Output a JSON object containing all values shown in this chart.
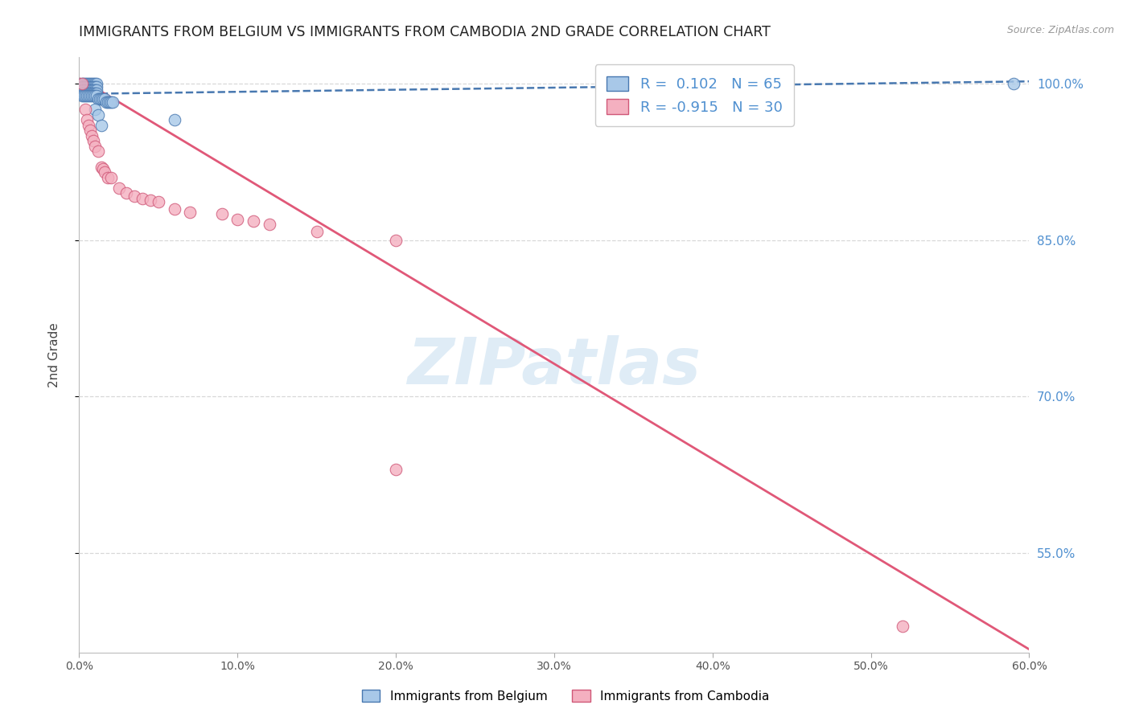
{
  "title": "IMMIGRANTS FROM BELGIUM VS IMMIGRANTS FROM CAMBODIA 2ND GRADE CORRELATION CHART",
  "source": "Source: ZipAtlas.com",
  "ylabel": "2nd Grade",
  "watermark": "ZIPatlas",
  "xlim": [
    0.0,
    0.6
  ],
  "ylim": [
    0.455,
    1.025
  ],
  "yticks": [
    0.55,
    0.7,
    0.85,
    1.0
  ],
  "ytick_labels": [
    "55.0%",
    "70.0%",
    "85.0%",
    "100.0%"
  ],
  "xticks": [
    0.0,
    0.1,
    0.2,
    0.3,
    0.4,
    0.5,
    0.6
  ],
  "xtick_labels": [
    "0.0%",
    "10.0%",
    "20.0%",
    "30.0%",
    "40.0%",
    "50.0%",
    "60.0%"
  ],
  "blue_label": "Immigrants from Belgium",
  "pink_label": "Immigrants from Cambodia",
  "blue_R": "0.102",
  "blue_N": "65",
  "pink_R": "-0.915",
  "pink_N": "30",
  "blue_color": "#a8c8e8",
  "pink_color": "#f4b0c0",
  "blue_edge_color": "#4878b0",
  "pink_edge_color": "#d05878",
  "blue_line_color": "#4878b0",
  "pink_line_color": "#e05878",
  "grid_color": "#d8d8d8",
  "right_tick_color": "#5090d0",
  "blue_scatter_x": [
    0.002,
    0.003,
    0.004,
    0.005,
    0.006,
    0.007,
    0.008,
    0.009,
    0.01,
    0.011,
    0.002,
    0.003,
    0.004,
    0.005,
    0.006,
    0.007,
    0.008,
    0.009,
    0.01,
    0.011,
    0.002,
    0.003,
    0.004,
    0.005,
    0.006,
    0.007,
    0.008,
    0.009,
    0.01,
    0.011,
    0.002,
    0.003,
    0.004,
    0.005,
    0.006,
    0.007,
    0.008,
    0.009,
    0.01,
    0.011,
    0.002,
    0.003,
    0.004,
    0.005,
    0.006,
    0.007,
    0.008,
    0.009,
    0.01,
    0.011,
    0.012,
    0.013,
    0.014,
    0.015,
    0.016,
    0.017,
    0.018,
    0.019,
    0.02,
    0.021,
    0.01,
    0.012,
    0.014,
    0.59,
    0.06
  ],
  "blue_scatter_y": [
    1.0,
    1.0,
    1.0,
    1.0,
    1.0,
    1.0,
    1.0,
    1.0,
    1.0,
    1.0,
    0.997,
    0.997,
    0.997,
    0.997,
    0.997,
    0.997,
    0.997,
    0.997,
    0.997,
    0.997,
    0.994,
    0.994,
    0.994,
    0.994,
    0.994,
    0.994,
    0.994,
    0.994,
    0.994,
    0.994,
    0.991,
    0.991,
    0.991,
    0.991,
    0.991,
    0.991,
    0.991,
    0.991,
    0.991,
    0.991,
    0.988,
    0.988,
    0.988,
    0.988,
    0.988,
    0.988,
    0.988,
    0.988,
    0.988,
    0.988,
    0.985,
    0.985,
    0.985,
    0.985,
    0.985,
    0.982,
    0.982,
    0.982,
    0.982,
    0.982,
    0.975,
    0.97,
    0.96,
    1.0,
    0.965
  ],
  "pink_scatter_x": [
    0.002,
    0.004,
    0.005,
    0.006,
    0.007,
    0.008,
    0.009,
    0.01,
    0.012,
    0.014,
    0.015,
    0.016,
    0.018,
    0.02,
    0.025,
    0.03,
    0.035,
    0.04,
    0.045,
    0.05,
    0.06,
    0.07,
    0.09,
    0.1,
    0.11,
    0.12,
    0.15,
    0.2,
    0.52,
    0.2
  ],
  "pink_scatter_y": [
    1.0,
    0.975,
    0.965,
    0.96,
    0.955,
    0.95,
    0.945,
    0.94,
    0.935,
    0.92,
    0.918,
    0.915,
    0.91,
    0.91,
    0.9,
    0.895,
    0.892,
    0.89,
    0.888,
    0.887,
    0.88,
    0.877,
    0.875,
    0.87,
    0.868,
    0.865,
    0.858,
    0.63,
    0.48,
    0.85
  ],
  "blue_trend_x": [
    0.0,
    0.6
  ],
  "blue_trend_y": [
    0.99,
    1.002
  ],
  "pink_trend_x": [
    0.0,
    0.6
  ],
  "pink_trend_y": [
    1.005,
    0.458
  ]
}
